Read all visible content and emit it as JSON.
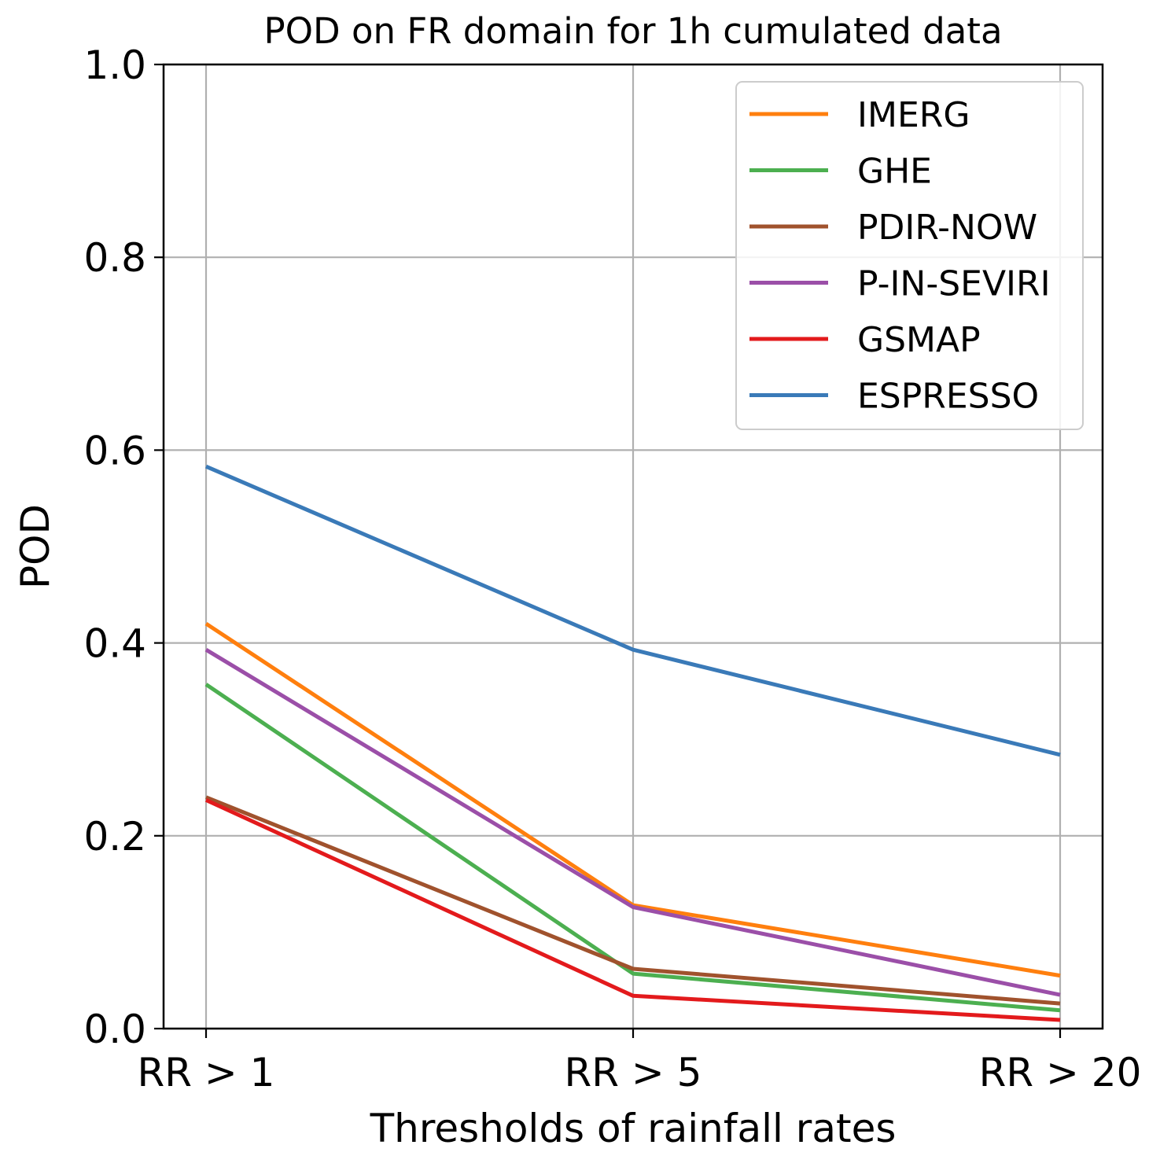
{
  "chart_data": {
    "type": "line",
    "title": "POD on FR domain for 1h cumulated data",
    "xlabel": "Thresholds of rainfall rates",
    "ylabel": "POD",
    "categories": [
      "RR > 1",
      "RR > 5",
      "RR > 20"
    ],
    "ylim": [
      0.0,
      1.0
    ],
    "yticks": [
      "0.0",
      "0.2",
      "0.4",
      "0.6",
      "0.8",
      "1.0"
    ],
    "grid": true,
    "legend_position": "top-right",
    "series": [
      {
        "name": "IMERG",
        "color": "#ff7f0e",
        "values": [
          0.42,
          0.128,
          0.055
        ]
      },
      {
        "name": "GHE",
        "color": "#4caf50",
        "values": [
          0.357,
          0.057,
          0.019
        ]
      },
      {
        "name": "PDIR-NOW",
        "color": "#a0522d",
        "values": [
          0.24,
          0.062,
          0.026
        ]
      },
      {
        "name": "P-IN-SEVIRI",
        "color": "#9b4fa8",
        "values": [
          0.393,
          0.126,
          0.035
        ]
      },
      {
        "name": "GSMAP",
        "color": "#e31a1c",
        "values": [
          0.237,
          0.034,
          0.009
        ]
      },
      {
        "name": "ESPRESSO",
        "color": "#3a7ab8",
        "values": [
          0.583,
          0.393,
          0.284
        ]
      }
    ]
  }
}
